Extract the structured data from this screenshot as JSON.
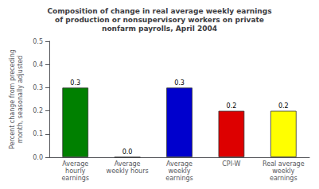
{
  "chart_data": {
    "type": "bar",
    "title": "Composition of change in real average weekly earnings\nof production or nonsupervisory workers on private\nnonfarm payrolls, April 2004",
    "ylabel": "Percent change from preceding\nmonth, seasonally adjusted",
    "categories": [
      "Average\nhourly\nearnings",
      "Average\nweekly hours",
      "Average\nweekly\nearnings",
      "CPI-W",
      "Real average\nweekly\nearnings"
    ],
    "values": [
      0.3,
      0.0,
      0.3,
      0.2,
      0.2
    ],
    "value_labels": [
      "0.3",
      "0.0",
      "0.3",
      "0.2",
      "0.2"
    ],
    "data_labels": true,
    "colors": [
      "#008000",
      "#ffffff",
      "#0000cd",
      "#dd0000",
      "#ffff00"
    ],
    "ylim": [
      0,
      0.5
    ],
    "yticks": [
      {
        "value": 0.0,
        "label": "0.0"
      },
      0.1,
      0.2,
      0.3,
      0.4,
      0.5
    ],
    "grid": false
  }
}
